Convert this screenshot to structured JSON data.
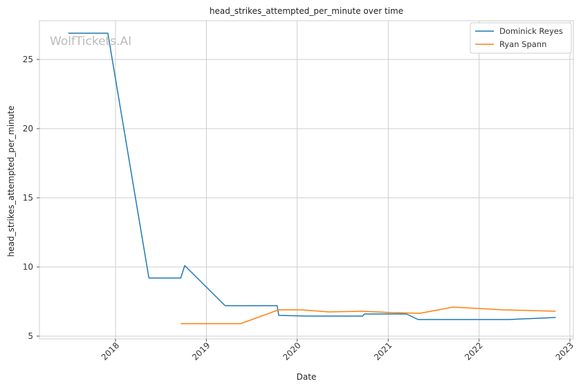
{
  "chart_data": {
    "type": "line",
    "title": "head_strikes_attempted_per_minute over time",
    "xlabel": "Date",
    "ylabel": "head_strikes_attempted_per_minute",
    "watermark": "WolfTickets.AI",
    "xlim": [
      "2017-03-01",
      "2023-01-15"
    ],
    "ylim": [
      4.8,
      27.8
    ],
    "x_ticks": [
      "2018-01-01",
      "2019-01-01",
      "2020-01-01",
      "2021-01-01",
      "2022-01-01",
      "2023-01-01"
    ],
    "x_tick_labels": [
      "2018",
      "2019",
      "2020",
      "2021",
      "2022",
      "2023"
    ],
    "y_ticks": [
      5,
      10,
      15,
      20,
      25
    ],
    "y_tick_labels": [
      "5",
      "10",
      "15",
      "20",
      "25"
    ],
    "grid": true,
    "legend_position": "top-right",
    "series": [
      {
        "name": "Dominick Reyes",
        "color": "#1f77b4",
        "points": [
          [
            "2017-06-25",
            26.9
          ],
          [
            "2017-12-01",
            26.9
          ],
          [
            "2018-05-15",
            9.2
          ],
          [
            "2018-09-20",
            9.2
          ],
          [
            "2018-10-06",
            10.1
          ],
          [
            "2019-03-17",
            7.2
          ],
          [
            "2019-10-12",
            7.2
          ],
          [
            "2019-10-19",
            6.5
          ],
          [
            "2020-02-08",
            6.45
          ],
          [
            "2020-09-20",
            6.45
          ],
          [
            "2020-09-27",
            6.6
          ],
          [
            "2021-03-15",
            6.6
          ],
          [
            "2021-05-01",
            6.2
          ],
          [
            "2022-05-01",
            6.2
          ],
          [
            "2022-11-05",
            6.35
          ]
        ]
      },
      {
        "name": "Ryan Spann",
        "color": "#ff7f0e",
        "points": [
          [
            "2018-09-20",
            5.9
          ],
          [
            "2019-05-18",
            5.9
          ],
          [
            "2019-10-18",
            6.9
          ],
          [
            "2020-01-18",
            6.9
          ],
          [
            "2020-05-09",
            6.75
          ],
          [
            "2020-09-19",
            6.8
          ],
          [
            "2021-01-15",
            6.7
          ],
          [
            "2021-05-08",
            6.65
          ],
          [
            "2021-09-18",
            7.1
          ],
          [
            "2022-04-09",
            6.9
          ],
          [
            "2022-11-05",
            6.8
          ]
        ]
      }
    ]
  }
}
